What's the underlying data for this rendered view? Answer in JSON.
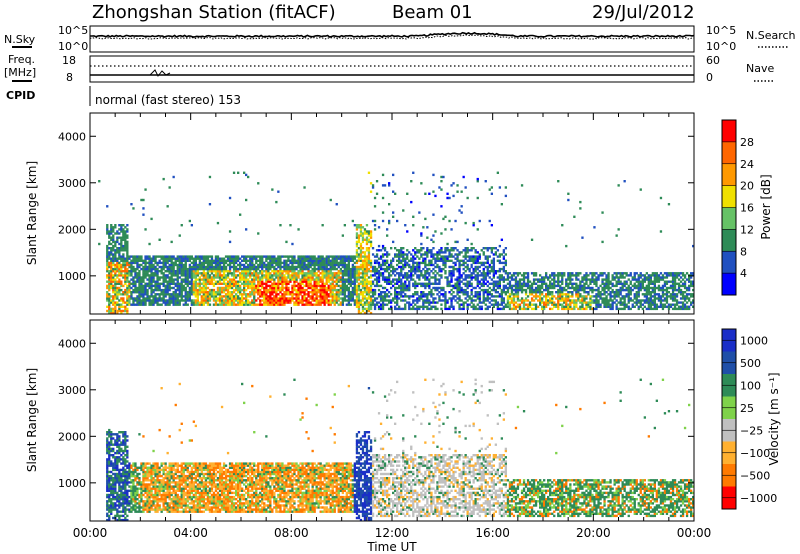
{
  "header": {
    "station": "Zhongshan Station (fitACF)",
    "beam": "Beam 01",
    "date": "29/Jul/2012"
  },
  "strip_panels": {
    "top_left_label": "N.Sky",
    "top_left_ticks": [
      "10^5",
      "10^0"
    ],
    "top_right_label": "N.Search",
    "top_right_ticks": [
      "10^5",
      "10^0"
    ],
    "mid_left_label": "Freq.",
    "mid_left_unit": "[MHz]",
    "mid_left_ticks": [
      "18",
      "8"
    ],
    "mid_right_label": "Nave",
    "mid_right_ticks": [
      "60",
      "0"
    ],
    "cpid_label": "CPID",
    "cpid_text": "normal (fast stereo) 153"
  },
  "colors": {
    "power_scale": [
      "#0000ff",
      "#2050c0",
      "#2e8b57",
      "#66c266",
      "#f0e000",
      "#ff9900",
      "#ff6600",
      "#ff0000"
    ],
    "velocity_scale": [
      "#ff0000",
      "#ff7a00",
      "#ffb030",
      "#c0c0c0",
      "#7fd24a",
      "#2e8b57",
      "#1f4fa8",
      "#1a2ec8"
    ]
  },
  "chart_data": [
    {
      "type": "heatmap",
      "name": "Power",
      "xlabel": "",
      "ylabel": "Slant Range [km]",
      "x_ticks": [
        "00:00",
        "04:00",
        "08:00",
        "12:00",
        "16:00",
        "20:00",
        "00:00"
      ],
      "y_ticks": [
        "1000",
        "2000",
        "3000",
        "4000"
      ],
      "ylim": [
        180,
        4500
      ],
      "colorbar_label": "Power [dB]",
      "colorbar_ticks": [
        "4",
        "8",
        "12",
        "16",
        "20",
        "24",
        "28"
      ],
      "range_dB": [
        0,
        32
      ]
    },
    {
      "type": "heatmap",
      "name": "Velocity",
      "xlabel": "Time UT",
      "ylabel": "Slant Range [km]",
      "x_ticks": [
        "00:00",
        "04:00",
        "08:00",
        "12:00",
        "16:00",
        "20:00",
        "00:00"
      ],
      "y_ticks": [
        "1000",
        "2000",
        "3000",
        "4000"
      ],
      "ylim": [
        180,
        4500
      ],
      "colorbar_label": "Velocity [m s⁻¹]",
      "colorbar_ticks": [
        "1000",
        "500",
        "100",
        "25",
        "−25",
        "−100",
        "−500",
        "−1000"
      ]
    }
  ]
}
